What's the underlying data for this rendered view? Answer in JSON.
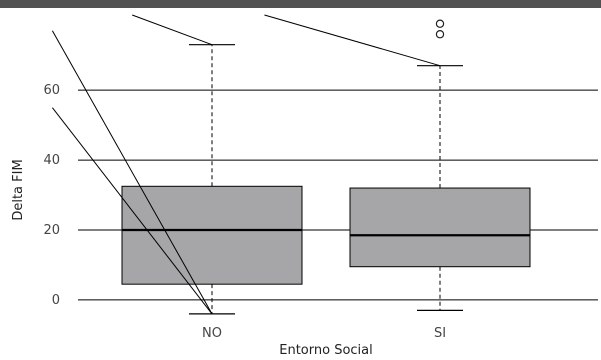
{
  "chart_data": {
    "type": "box",
    "xlabel": "Entorno Social",
    "ylabel": "Delta FIM",
    "ylim": [
      -4.6,
      83.5
    ],
    "yticks": [
      0,
      20,
      40,
      60
    ],
    "grid": "horizontal",
    "box_color": "#a6a6a8",
    "top_band_color": "#525252",
    "categories": [
      "NO",
      "SI"
    ],
    "boxes": [
      {
        "category": "NO",
        "whisker_low": -4,
        "q1": 4.5,
        "median": 20,
        "q3": 32.5,
        "whisker_high": 73,
        "outliers": []
      },
      {
        "category": "SI",
        "whisker_low": -3,
        "q1": 9.5,
        "median": 18.5,
        "q3": 32,
        "whisker_high": 67,
        "outliers": [
          76,
          79
        ]
      }
    ],
    "lines": [
      {
        "from": [
          0.3,
          77
        ],
        "to": [
          1.0,
          -4
        ]
      },
      {
        "from": [
          0.3,
          55
        ],
        "to": [
          1.0,
          -4
        ]
      },
      {
        "from": [
          0.65,
          81.5
        ],
        "to": [
          1.0,
          73
        ]
      },
      {
        "from": [
          1.23,
          81.5
        ],
        "to": [
          2.0,
          67
        ]
      }
    ]
  }
}
